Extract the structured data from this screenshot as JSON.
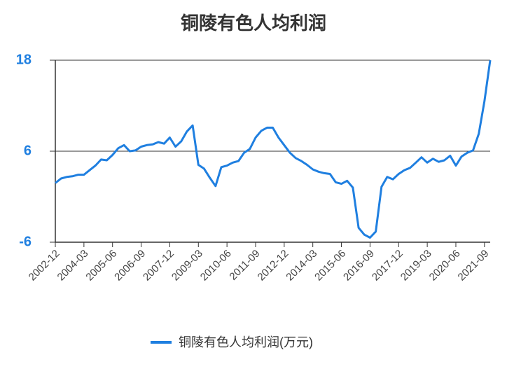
{
  "chart_data": {
    "type": "line",
    "title": "铜陵有色人均利润",
    "categories": [
      "2002-12",
      null,
      null,
      null,
      null,
      "2004-03",
      null,
      null,
      null,
      null,
      "2005-06",
      null,
      null,
      null,
      null,
      "2006-09",
      null,
      null,
      null,
      null,
      "2007-12",
      null,
      null,
      null,
      null,
      "2009-03",
      null,
      null,
      null,
      null,
      "2010-06",
      null,
      null,
      null,
      null,
      "2011-09",
      null,
      null,
      null,
      null,
      "2012-12",
      null,
      null,
      null,
      null,
      "2014-03",
      null,
      null,
      null,
      null,
      "2015-06",
      null,
      null,
      null,
      null,
      "2016-09",
      null,
      null,
      null,
      null,
      "2017-12",
      null,
      null,
      null,
      null,
      "2019-03",
      null,
      null,
      null,
      null,
      "2020-06",
      null,
      null,
      null,
      null,
      "2021-09",
      null
    ],
    "series": [
      {
        "name": "铜陵有色人均利润(万元)",
        "color": "#1f7fe0",
        "values": [
          1.8,
          2.4,
          2.6,
          2.7,
          2.9,
          2.9,
          3.5,
          4.1,
          4.9,
          4.8,
          5.5,
          6.4,
          6.8,
          6.0,
          6.1,
          6.6,
          6.8,
          6.9,
          7.2,
          7.0,
          7.8,
          6.6,
          7.3,
          8.6,
          9.4,
          4.2,
          3.7,
          2.5,
          1.4,
          3.9,
          4.1,
          4.5,
          4.7,
          5.8,
          6.3,
          7.8,
          8.7,
          9.1,
          9.1,
          7.8,
          6.8,
          5.8,
          5.1,
          4.7,
          4.2,
          3.6,
          3.3,
          3.1,
          3.0,
          1.9,
          1.7,
          2.1,
          1.2,
          -4.1,
          -5.0,
          -5.4,
          -4.6,
          1.3,
          2.6,
          2.3,
          3.0,
          3.5,
          3.8,
          4.5,
          5.2,
          4.5,
          5.0,
          4.6,
          4.8,
          5.4,
          4.1,
          5.3,
          5.8,
          6.1,
          8.3,
          12.6,
          18.0
        ]
      }
    ],
    "ylim": [
      -6,
      18
    ],
    "yticks": [
      -6,
      6,
      18
    ],
    "grid": true
  }
}
